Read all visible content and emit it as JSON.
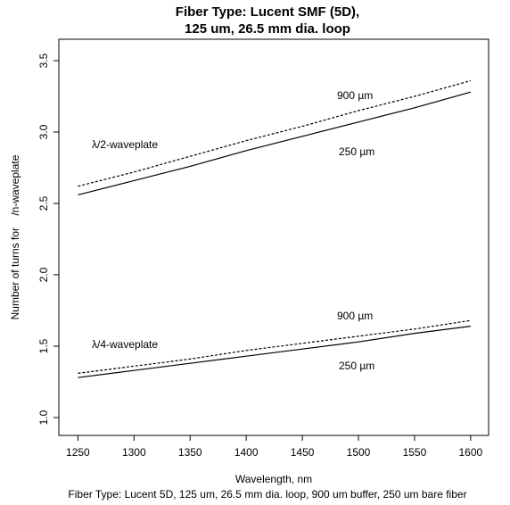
{
  "chart_data": {
    "type": "line",
    "title": [
      "Fiber Type: Lucent SMF (5D),",
      "125 um, 26.5 mm dia. loop"
    ],
    "xlabel": "Wavelength, nm",
    "ylabel": "Number of turns for    /n-waveplate",
    "caption": "Fiber Type: Lucent 5D, 125 um, 26.5 mm dia. loop, 900 um buffer, 250 um bare fiber",
    "x": [
      1250,
      1300,
      1350,
      1400,
      1450,
      1500,
      1550,
      1600
    ],
    "series": [
      {
        "color": "#000000",
        "dashed": false,
        "values": [
          2.56,
          2.66,
          2.76,
          2.87,
          2.97,
          3.07,
          3.17,
          3.28
        ]
      },
      {
        "color": "#000000",
        "dashed": true,
        "values": [
          2.62,
          2.72,
          2.83,
          2.94,
          3.04,
          3.15,
          3.25,
          3.36
        ]
      },
      {
        "color": "#000000",
        "dashed": false,
        "values": [
          1.28,
          1.33,
          1.38,
          1.43,
          1.48,
          1.53,
          1.59,
          1.64
        ]
      },
      {
        "color": "#000000",
        "dashed": true,
        "values": [
          1.31,
          1.36,
          1.41,
          1.47,
          1.52,
          1.57,
          1.62,
          1.68
        ]
      }
    ],
    "annotations": [
      "λ/2-waveplate",
      "900 µm",
      "250 µm",
      "λ/4-waveplate",
      "900 µm",
      "250 µm"
    ],
    "xlim": [
      1233,
      1616
    ],
    "ylim": [
      0.875,
      3.65
    ],
    "xticks": [
      1250,
      1300,
      1350,
      1400,
      1450,
      1500,
      1550,
      1600
    ],
    "yticks": [
      {
        "value": 1,
        "label": "1.0"
      },
      1.5,
      {
        "value": 2,
        "label": "2.0"
      },
      2.5,
      {
        "value": 3,
        "label": "3.0"
      },
      3.5
    ]
  }
}
